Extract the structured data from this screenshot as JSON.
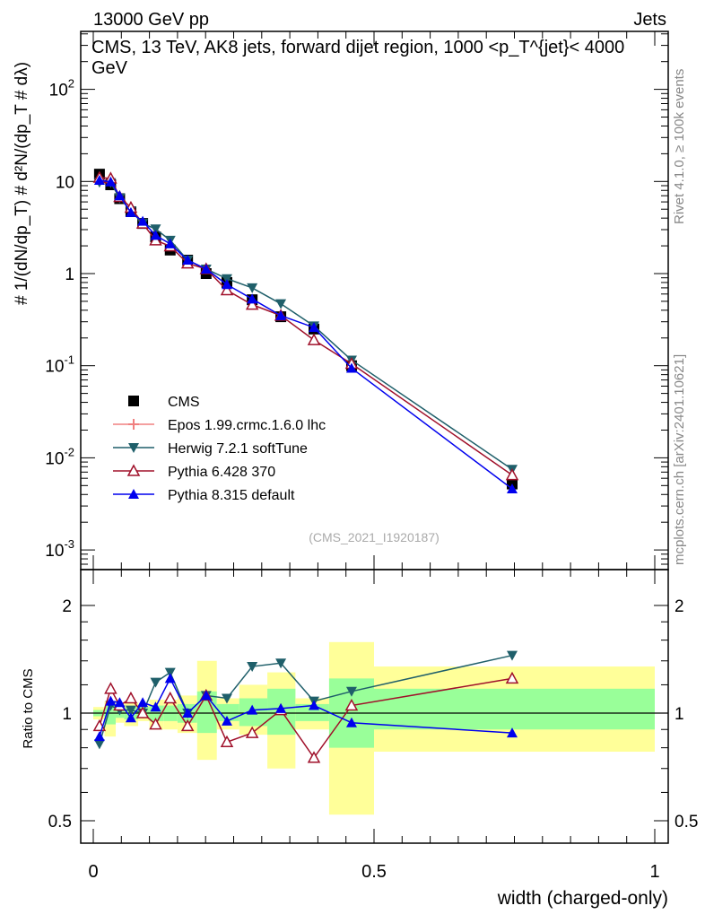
{
  "header": {
    "left": "13000 GeV pp",
    "right": "Jets"
  },
  "side_labels": {
    "rivet": "Rivet 4.1.0, ≥ 100k events",
    "mcplots": "mcplots.cern.ch [arXiv:2401.10621]"
  },
  "colors": {
    "cms": "#000000",
    "epos": "#f08080",
    "herwig": "#1f5f6a",
    "pythia6": "#a0102a",
    "pythia8": "#0000ee",
    "band_outer": "#ffff99",
    "band_inner": "#99ff99"
  },
  "chart_data": [
    {
      "type": "scatter",
      "title": "CMS, 13 TeV, AK8 jets, forward dijet region, 1000 <p_T^{jet}< 4000 GeV",
      "ylabel": "# 1/(dN/dp_T) # d²N/(dp_T # dλ)",
      "xlabel": "width (charged-only)",
      "yscale": "log",
      "ylim": [
        0.0007,
        500
      ],
      "xlim": [
        -0.02,
        1.02
      ],
      "yticks": [
        {
          "v": 0.001,
          "b": "10",
          "e": "-3"
        },
        {
          "v": 0.01,
          "b": "10",
          "e": "-2"
        },
        {
          "v": 0.1,
          "b": "10",
          "e": "-1"
        },
        {
          "v": 1,
          "b": "1",
          "e": ""
        },
        {
          "v": 10,
          "b": "10",
          "e": ""
        },
        {
          "v": 100,
          "b": "10",
          "e": "2"
        }
      ],
      "annotation": "(CMS_2021_I1920187)",
      "legend_position": "bottom-left",
      "x": [
        0.011,
        0.031,
        0.047,
        0.067,
        0.088,
        0.111,
        0.137,
        0.168,
        0.201,
        0.238,
        0.283,
        0.334,
        0.393,
        0.46,
        0.746
      ],
      "series": [
        {
          "name": "CMS",
          "key": "cms",
          "marker": "square",
          "values": [
            12,
            9.2,
            6.5,
            4.7,
            3.5,
            2.5,
            1.8,
            1.4,
            1.0,
            0.8,
            0.52,
            0.34,
            0.25,
            0.1,
            0.0052
          ]
        },
        {
          "name": "Epos 1.99.crmc.1.6.0 lhc",
          "key": "epos",
          "marker": "cross",
          "values": []
        },
        {
          "name": "Herwig 7.2.1 softTune",
          "key": "herwig",
          "marker": "triangle-down",
          "values": [
            9.8,
            9.7,
            6.6,
            4.8,
            3.5,
            3.05,
            2.3,
            1.4,
            1.12,
            0.88,
            0.7,
            0.47,
            0.27,
            0.115,
            0.0075
          ]
        },
        {
          "name": "Pythia 6.428 370",
          "key": "pythia6",
          "marker": "triangle-up-open",
          "values": [
            11,
            10.8,
            6.8,
            5.2,
            3.5,
            2.3,
            1.98,
            1.29,
            1.12,
            0.66,
            0.46,
            0.35,
            0.19,
            0.105,
            0.0065
          ]
        },
        {
          "name": "Pythia 8.315 default",
          "key": "pythia8",
          "marker": "triangle-up",
          "values": [
            10.3,
            9.9,
            7.0,
            4.6,
            3.7,
            2.6,
            2.1,
            1.4,
            1.12,
            0.76,
            0.53,
            0.35,
            0.26,
            0.094,
            0.0046
          ]
        }
      ]
    },
    {
      "type": "scatter",
      "ylabel": "Ratio to CMS",
      "yscale": "log",
      "ylim": [
        0.42,
        2.4
      ],
      "yticks": [
        {
          "v": 0.5,
          "l": "0.5"
        },
        {
          "v": 1,
          "l": "1"
        },
        {
          "v": 2,
          "l": "2"
        }
      ],
      "xticks": [
        {
          "v": 0,
          "l": "0"
        },
        {
          "v": 0.5,
          "l": "0.5"
        },
        {
          "v": 1,
          "l": "1"
        }
      ],
      "bin_edges": [
        0,
        0.02,
        0.04,
        0.055,
        0.08,
        0.1,
        0.125,
        0.15,
        0.185,
        0.22,
        0.26,
        0.31,
        0.36,
        0.42,
        0.5,
        1.0
      ],
      "band_outer": [
        [
          0.96,
          1.04
        ],
        [
          0.86,
          1.08
        ],
        [
          0.94,
          1.06
        ],
        [
          0.92,
          1.07
        ],
        [
          0.95,
          1.06
        ],
        [
          0.9,
          1.09
        ],
        [
          0.9,
          1.09
        ],
        [
          0.88,
          1.12
        ],
        [
          0.74,
          1.4
        ],
        [
          0.9,
          1.1
        ],
        [
          0.87,
          1.2
        ],
        [
          0.7,
          1.3
        ],
        [
          0.9,
          1.1
        ],
        [
          0.52,
          1.58
        ],
        [
          0.78,
          1.35
        ]
      ],
      "band_inner": [
        [
          0.98,
          1.02
        ],
        [
          0.93,
          1.05
        ],
        [
          0.97,
          1.04
        ],
        [
          0.96,
          1.04
        ],
        [
          0.97,
          1.04
        ],
        [
          0.95,
          1.05
        ],
        [
          0.95,
          1.05
        ],
        [
          0.94,
          1.06
        ],
        [
          0.88,
          1.15
        ],
        [
          0.95,
          1.06
        ],
        [
          0.92,
          1.1
        ],
        [
          0.87,
          1.17
        ],
        [
          0.95,
          1.06
        ],
        [
          0.8,
          1.25
        ],
        [
          0.9,
          1.17
        ]
      ],
      "series": [
        {
          "name": "Herwig 7.2.1 softTune",
          "key": "herwig",
          "marker": "triangle-down",
          "values": [
            0.82,
            1.05,
            1.02,
            1.02,
            1.0,
            1.22,
            1.3,
            1.0,
            1.12,
            1.1,
            1.35,
            1.38,
            1.08,
            1.15,
            1.45
          ]
        },
        {
          "name": "Pythia 6.428 370",
          "key": "pythia6",
          "marker": "triangle-up-open",
          "values": [
            0.92,
            1.17,
            1.05,
            1.1,
            1.0,
            0.93,
            1.1,
            0.92,
            1.12,
            0.83,
            0.88,
            1.02,
            0.75,
            1.05,
            1.25
          ]
        },
        {
          "name": "Pythia 8.315 default",
          "key": "pythia8",
          "marker": "triangle-up",
          "values": [
            0.86,
            1.08,
            1.07,
            0.97,
            1.07,
            1.04,
            1.25,
            1.0,
            1.12,
            0.95,
            1.02,
            1.03,
            1.05,
            0.94,
            0.88
          ]
        }
      ]
    }
  ]
}
